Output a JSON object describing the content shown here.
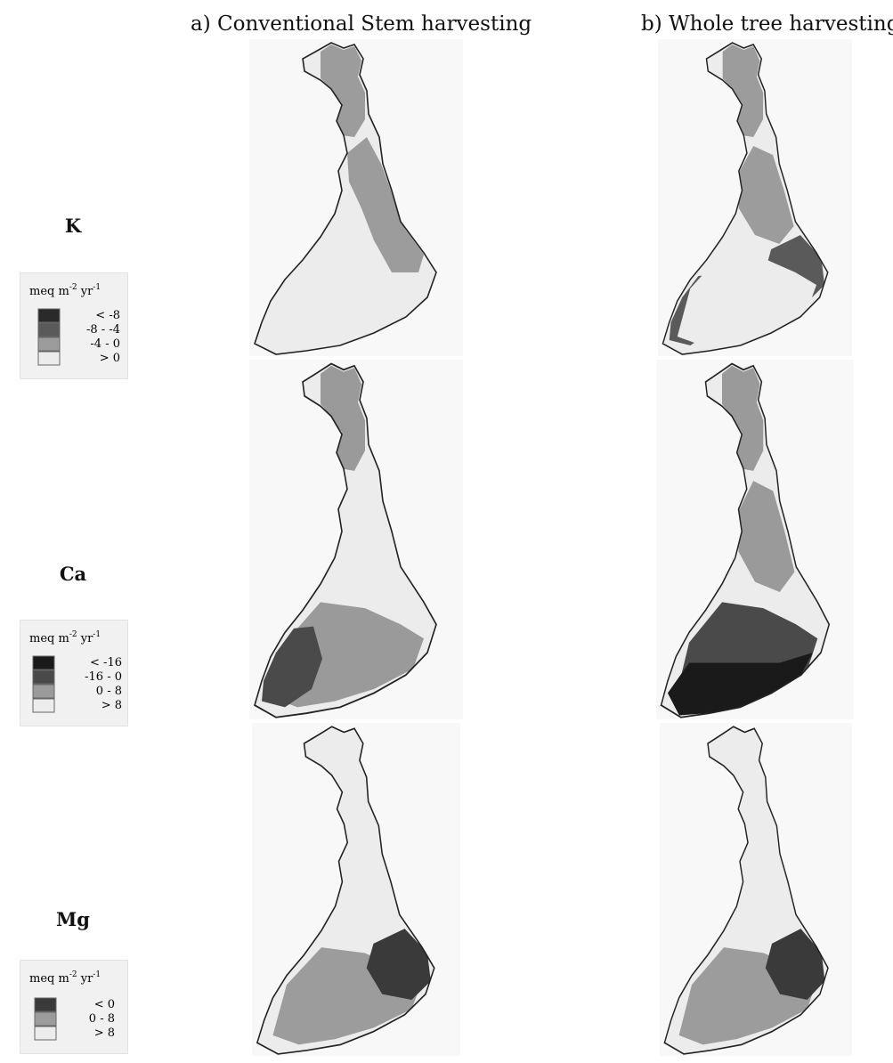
{
  "columns": [
    "a) Conventional Stem harvesting",
    "b) Whole tree harvesting"
  ],
  "rows": [
    {
      "element": "K",
      "legend": {
        "unit_base": "meq m",
        "unit_exp1": "-2",
        "unit_mid": " yr",
        "unit_exp2": "-1",
        "classes": [
          {
            "label": "< -8",
            "color": "#2a2a2a"
          },
          {
            "label": "-8 - -4",
            "color": "#5a5a5a"
          },
          {
            "label": "-4 - 0",
            "color": "#9c9c9c"
          },
          {
            "label": "> 0",
            "color": "#ececec"
          }
        ]
      },
      "maps": [
        {
          "column": "a",
          "zones": [
            {
              "cls": 2,
              "area": "north"
            },
            {
              "cls": 2,
              "area": "east"
            },
            {
              "cls": 3,
              "area": "southwest"
            }
          ]
        },
        {
          "column": "b",
          "zones": [
            {
              "cls": 2,
              "area": "north"
            },
            {
              "cls": 2,
              "area": "central"
            },
            {
              "cls": 1,
              "area": "southeast"
            },
            {
              "cls": 1,
              "area": "southwest"
            },
            {
              "cls": 3,
              "area": "south"
            }
          ]
        }
      ]
    },
    {
      "element": "Ca",
      "legend": {
        "unit_base": "meq m",
        "unit_exp1": "-2",
        "unit_mid": " yr",
        "unit_exp2": "-1",
        "classes": [
          {
            "label": "< -16",
            "color": "#1a1a1a"
          },
          {
            "label": "-16 - 0",
            "color": "#4a4a4a"
          },
          {
            "label": "0 - 8",
            "color": "#9a9a9a"
          },
          {
            "label": "> 8",
            "color": "#ececec"
          }
        ]
      },
      "maps": [
        {
          "column": "a",
          "zones": [
            {
              "cls": 2,
              "area": "north"
            },
            {
              "cls": 3,
              "area": "central"
            },
            {
              "cls": 2,
              "area": "south"
            },
            {
              "cls": 1,
              "area": "southwest"
            }
          ]
        },
        {
          "column": "b",
          "zones": [
            {
              "cls": 2,
              "area": "north"
            },
            {
              "cls": 2,
              "area": "central"
            },
            {
              "cls": 1,
              "area": "south"
            },
            {
              "cls": 0,
              "area": "southcoast"
            }
          ]
        }
      ]
    },
    {
      "element": "Mg",
      "legend": {
        "unit_base": "meq m",
        "unit_exp1": "-2",
        "unit_mid": " yr",
        "unit_exp2": "-1",
        "classes": [
          {
            "label": "< 0",
            "color": "#3a3a3a"
          },
          {
            "label": "0 - 8",
            "color": "#9c9c9c"
          },
          {
            "label": "> 8",
            "color": "#ececec"
          }
        ]
      },
      "maps": [
        {
          "column": "a",
          "zones": [
            {
              "cls": 1,
              "area": "south"
            },
            {
              "cls": 0,
              "area": "southeast"
            }
          ]
        },
        {
          "column": "b",
          "zones": [
            {
              "cls": 1,
              "area": "south"
            },
            {
              "cls": 0,
              "area": "southeast"
            }
          ]
        }
      ]
    }
  ]
}
